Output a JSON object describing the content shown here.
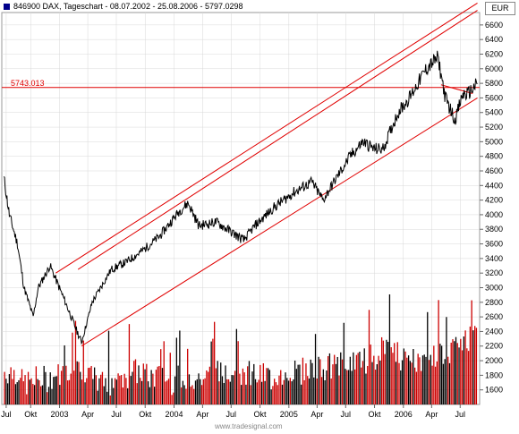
{
  "header": {
    "symbol_icon": "square-marker-icon",
    "title": "846900  DAX, Tageschart - 08.07.2002 - 25.08.2006 - 5797.0298",
    "unit": "EUR"
  },
  "watermark": "www.tradesignal.com",
  "colors": {
    "price": "#000000",
    "channel": "#e00000",
    "volume_up": "#cc0000",
    "volume_down": "#000000",
    "grid": "#d8d8d8",
    "level": "#e00000"
  },
  "chart_data": {
    "type": "line",
    "x_tick_labels": [
      "Jul",
      "Okt",
      "2003",
      "Apr",
      "Jul",
      "Okt",
      "2004",
      "Apr",
      "Jul",
      "Okt",
      "2005",
      "Apr",
      "Jul",
      "Okt",
      "2006",
      "Apr",
      "Jul"
    ],
    "y_tick_labels": [
      "6600",
      "6400",
      "6200",
      "6000",
      "5800",
      "5600",
      "5400",
      "5200",
      "5000",
      "4800",
      "4600",
      "4400",
      "4200",
      "4000",
      "3800",
      "3600",
      "3400",
      "3200",
      "3000",
      "2800",
      "2600",
      "2400",
      "2200",
      "2000",
      "1800",
      "1600"
    ],
    "ylim": [
      1400,
      6800
    ],
    "price_series": {
      "x": [
        "2002-07-08",
        "2002-07-25",
        "2002-08-20",
        "2002-09-10",
        "2002-10-09",
        "2002-10-25",
        "2002-12-02",
        "2003-01-15",
        "2003-03-12",
        "2003-04-15",
        "2003-06-15",
        "2003-08-01",
        "2003-09-20",
        "2003-11-15",
        "2004-01-20",
        "2004-02-15",
        "2004-03-20",
        "2004-05-15",
        "2004-08-10",
        "2004-09-15",
        "2004-11-15",
        "2005-01-15",
        "2005-03-15",
        "2005-04-20",
        "2005-06-01",
        "2005-07-15",
        "2005-08-25",
        "2005-09-30",
        "2005-10-28",
        "2005-12-15",
        "2006-01-20",
        "2006-03-15",
        "2006-04-21",
        "2006-05-15",
        "2006-06-14",
        "2006-07-10",
        "2006-07-25",
        "2006-08-25"
      ],
      "values": [
        4500,
        4000,
        3600,
        3000,
        2600,
        3000,
        3300,
        2850,
        2250,
        2800,
        3250,
        3350,
        3500,
        3700,
        4060,
        4160,
        3850,
        3900,
        3650,
        3850,
        4100,
        4300,
        4450,
        4200,
        4500,
        4800,
        5000,
        4900,
        4900,
        5400,
        5600,
        6000,
        6150,
        5600,
        5300,
        5650,
        5650,
        5797
      ]
    },
    "level_line": {
      "value": 5743.013,
      "label": "5743.013"
    },
    "channel_lines": [
      {
        "name": "upper_1",
        "x": [
          "2002-12-20",
          "2006-08-25"
        ],
        "y": [
          3200,
          6900
        ]
      },
      {
        "name": "upper_2",
        "x": [
          "2003-03-01",
          "2006-08-25"
        ],
        "y": [
          3250,
          6800
        ]
      },
      {
        "name": "lower",
        "x": [
          "2003-03-12",
          "2006-08-25"
        ],
        "y": [
          2200,
          5600
        ]
      },
      {
        "name": "short_resistance",
        "x": [
          "2006-05-01",
          "2006-08-10"
        ],
        "y": [
          5780,
          5660
        ]
      }
    ],
    "volume_series": {
      "x_start": "2002-07-08",
      "x_end": "2006-08-25",
      "values_sample": [
        1850,
        1700,
        1750,
        1800,
        1900,
        1750,
        1700,
        1800,
        1850,
        1780,
        1720,
        1800,
        1760,
        1820,
        1900,
        1850,
        1780,
        1800,
        1860,
        1900,
        1920,
        1950,
        2000,
        2050,
        2100,
        2000,
        1950,
        2050,
        2150,
        2300
      ]
    }
  }
}
